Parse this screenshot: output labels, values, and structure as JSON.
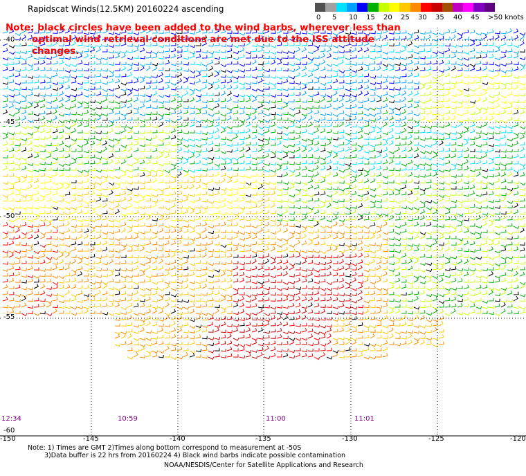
{
  "title": "Rapidscat Winds(12.5KM) 20160224 ascending",
  "note": {
    "line1": "Note: black circles have been added to the wind barbs, wherever less than",
    "line2": "optimal wind retrieval conditions are met due to the ISS attitude changes."
  },
  "legend": {
    "ticks": [
      "0",
      "5",
      "10",
      "15",
      "20",
      "25",
      "30",
      "35",
      "40",
      "45",
      ">50 knots"
    ],
    "colors": [
      "#505050",
      "#a0a0a0",
      "#00e0ff",
      "#00a0ff",
      "#0000ff",
      "#00b000",
      "#c8ff00",
      "#ffff00",
      "#ffc800",
      "#ff8c00",
      "#ff0000",
      "#c80000",
      "#a05000",
      "#c000c0",
      "#ff00ff",
      "#8000c0",
      "#600080"
    ]
  },
  "lat_labels": [
    "-40",
    "-45",
    "-50",
    "-55",
    "-60"
  ],
  "lon_labels": [
    "-150",
    "-145",
    "-140",
    "-135",
    "-130",
    "-125",
    "-120"
  ],
  "times": [
    "12:34",
    "10:59",
    "11:00",
    "11:01"
  ],
  "footer": {
    "line1": "Note: 1) Times are GMT 2)Times along bottom correspond to measurement at -50S",
    "line2": "3)Data buffer is 22 hrs from 20160224 4) Black wind barbs indicate possible contamination",
    "credit": "NOAA/NESDIS/Center for Satellite Applications and Research"
  }
}
